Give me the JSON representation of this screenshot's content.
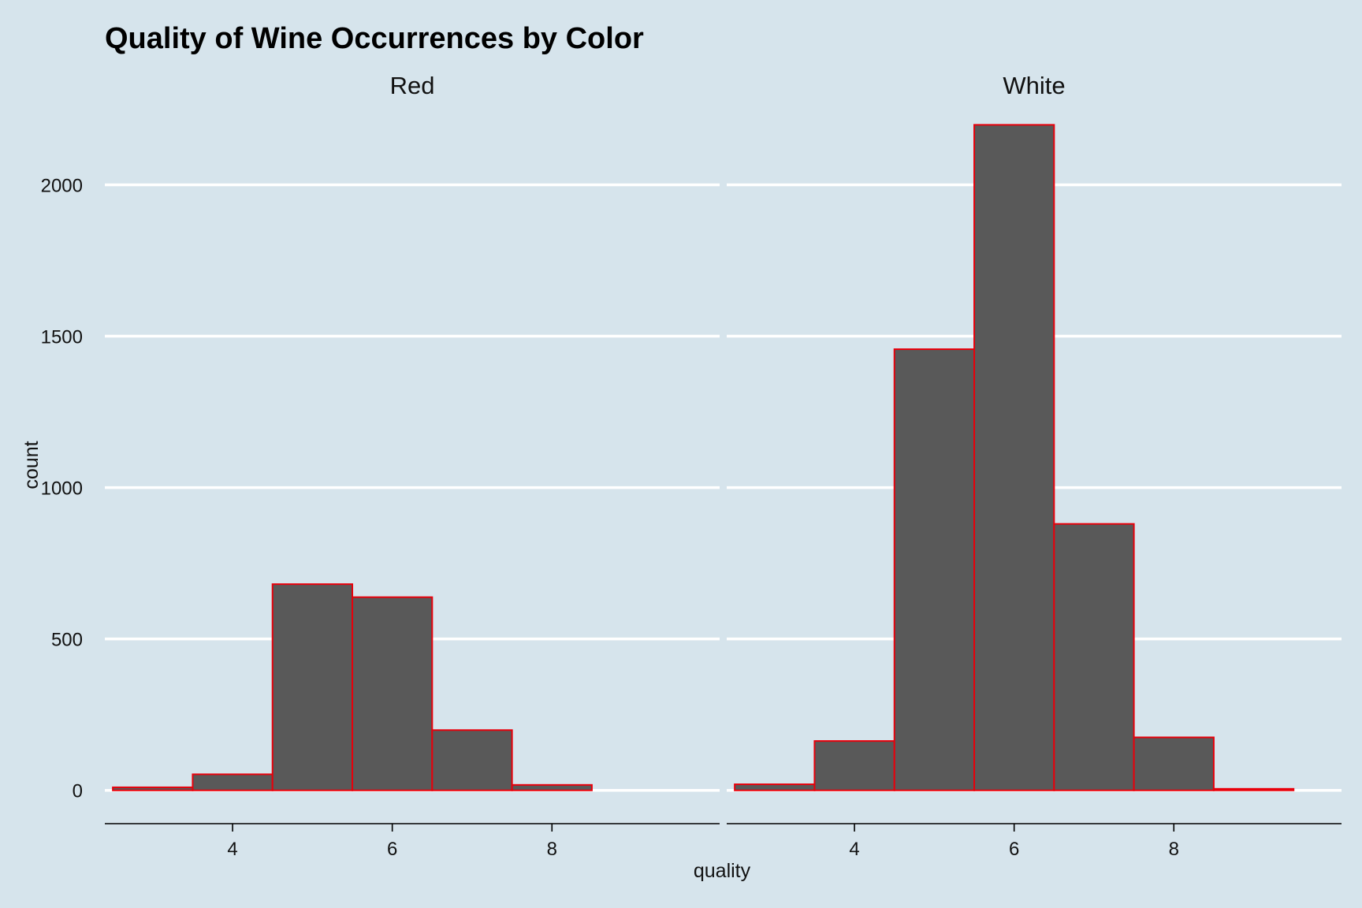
{
  "chart_data": {
    "type": "bar",
    "title": "Quality of Wine Occurrences by Color",
    "xlabel": "quality",
    "ylabel": "count",
    "bin_width": 1,
    "xlim": [
      2.4,
      10.1
    ],
    "ylim": [
      -110,
      2350
    ],
    "y_ticks": [
      0,
      500,
      1000,
      1500,
      2000
    ],
    "x_ticks": [
      4,
      6,
      8
    ],
    "grid": "horizontal major gridlines",
    "colors": {
      "background": "#d6e4ec",
      "bar_fill": "#595959",
      "bar_outline": "#e8000b",
      "grid": "#ffffff"
    },
    "panels": [
      {
        "label": "Red",
        "quality": [
          3,
          4,
          5,
          6,
          7,
          8,
          9
        ],
        "count": [
          10,
          53,
          681,
          638,
          199,
          18,
          0
        ]
      },
      {
        "label": "White",
        "quality": [
          3,
          4,
          5,
          6,
          7,
          8,
          9
        ],
        "count": [
          20,
          163,
          1457,
          2198,
          880,
          175,
          5
        ]
      }
    ]
  }
}
